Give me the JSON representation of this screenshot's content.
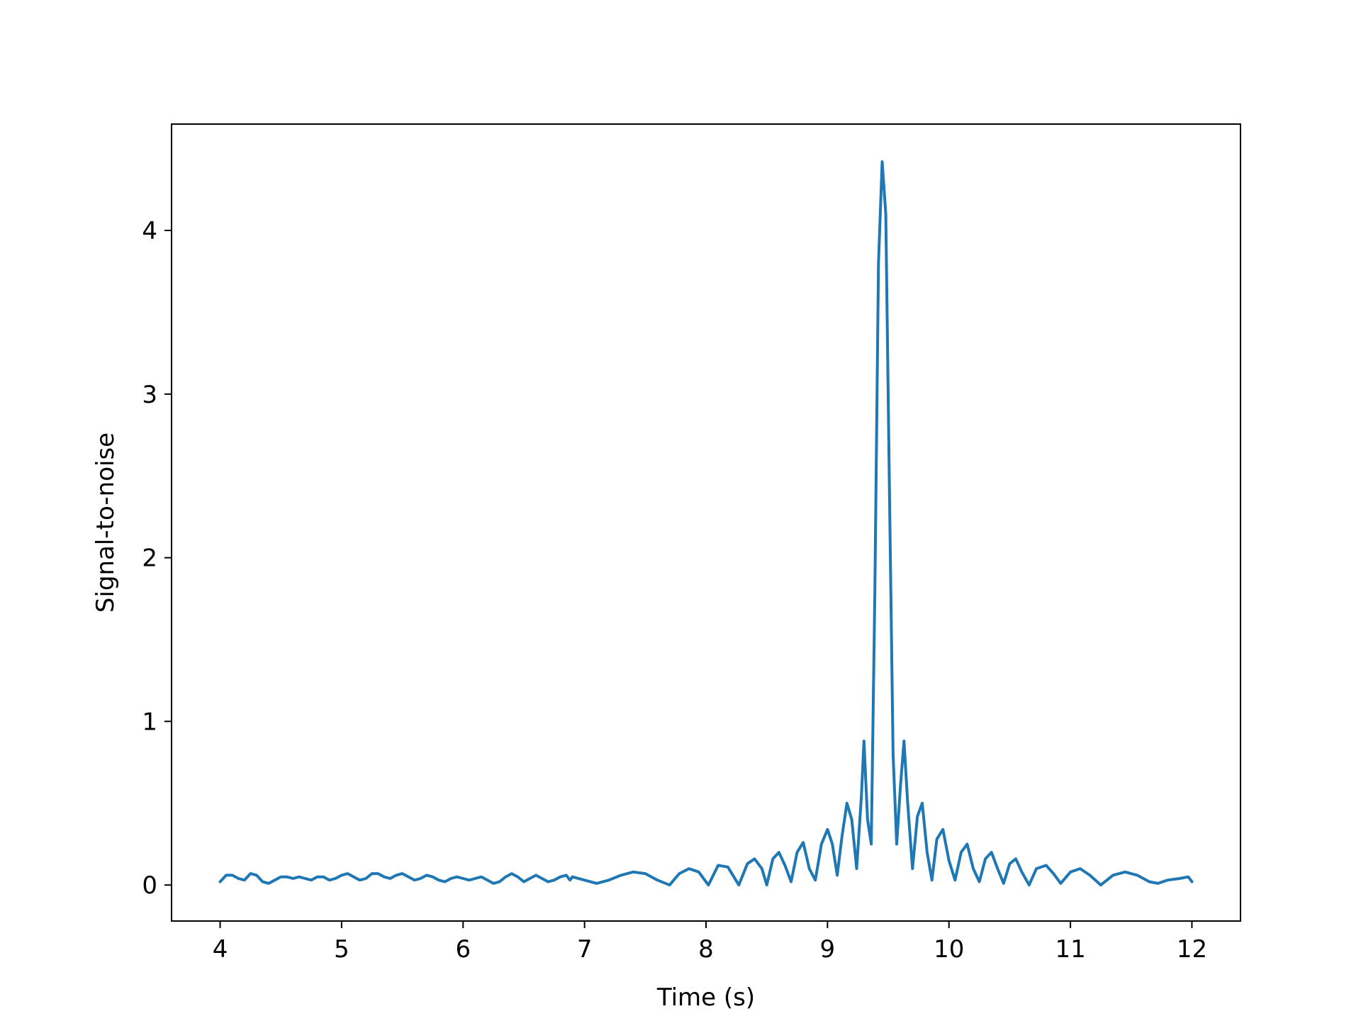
{
  "chart_data": {
    "type": "line",
    "title": "",
    "xlabel": "Time (s)",
    "ylabel": "Signal-to-noise",
    "xlim": [
      3.6,
      12.4
    ],
    "ylim": [
      -0.22,
      4.65
    ],
    "grid": false,
    "legend": "none",
    "x_ticks": [
      4,
      5,
      6,
      7,
      8,
      9,
      10,
      11,
      12
    ],
    "x_tick_labels": [
      "4",
      "5",
      "6",
      "7",
      "8",
      "9",
      "10",
      "11",
      "12"
    ],
    "y_ticks": [
      0,
      1,
      2,
      3,
      4
    ],
    "y_tick_labels": [
      "0",
      "1",
      "2",
      "3",
      "4"
    ],
    "series": [
      {
        "color": "#1f77b4",
        "x": [
          4.0,
          4.05,
          4.1,
          4.15,
          4.2,
          4.25,
          4.3,
          4.35,
          4.4,
          4.45,
          4.5,
          4.55,
          4.6,
          4.65,
          4.7,
          4.75,
          4.8,
          4.85,
          4.9,
          4.95,
          5.0,
          5.05,
          5.1,
          5.15,
          5.2,
          5.25,
          5.3,
          5.35,
          5.4,
          5.45,
          5.5,
          5.55,
          5.6,
          5.65,
          5.7,
          5.75,
          5.8,
          5.85,
          5.9,
          5.95,
          6.0,
          6.05,
          6.1,
          6.15,
          6.2,
          6.25,
          6.3,
          6.35,
          6.4,
          6.45,
          6.5,
          6.55,
          6.6,
          6.65,
          6.7,
          6.75,
          6.8,
          6.85,
          6.88,
          6.9,
          7.0,
          7.1,
          7.2,
          7.3,
          7.4,
          7.5,
          7.6,
          7.7,
          7.78,
          7.86,
          7.94,
          8.02,
          8.1,
          8.18,
          8.27,
          8.34,
          8.4,
          8.46,
          8.5,
          8.55,
          8.6,
          8.65,
          8.7,
          8.75,
          8.8,
          8.85,
          8.9,
          8.95,
          9.0,
          9.04,
          9.08,
          9.12,
          9.16,
          9.2,
          9.24,
          9.28,
          9.3,
          9.33,
          9.36,
          9.39,
          9.42,
          9.45,
          9.48,
          9.51,
          9.54,
          9.57,
          9.6,
          9.63,
          9.66,
          9.7,
          9.74,
          9.78,
          9.82,
          9.86,
          9.9,
          9.95,
          10.0,
          10.05,
          10.1,
          10.15,
          10.2,
          10.25,
          10.3,
          10.35,
          10.4,
          10.45,
          10.5,
          10.55,
          10.6,
          10.66,
          10.72,
          10.8,
          10.86,
          10.92,
          11.0,
          11.08,
          11.16,
          11.25,
          11.35,
          11.45,
          11.55,
          11.65,
          11.72,
          11.8,
          11.9,
          11.97,
          12.0
        ],
        "y": [
          0.02,
          0.06,
          0.06,
          0.04,
          0.03,
          0.07,
          0.06,
          0.02,
          0.01,
          0.03,
          0.05,
          0.05,
          0.04,
          0.05,
          0.04,
          0.03,
          0.05,
          0.05,
          0.03,
          0.04,
          0.06,
          0.07,
          0.05,
          0.03,
          0.04,
          0.07,
          0.07,
          0.05,
          0.04,
          0.06,
          0.07,
          0.05,
          0.03,
          0.04,
          0.06,
          0.05,
          0.03,
          0.02,
          0.04,
          0.05,
          0.04,
          0.03,
          0.04,
          0.05,
          0.03,
          0.01,
          0.02,
          0.05,
          0.07,
          0.05,
          0.02,
          0.04,
          0.06,
          0.04,
          0.02,
          0.03,
          0.05,
          0.06,
          0.03,
          0.05,
          0.03,
          0.01,
          0.03,
          0.06,
          0.08,
          0.07,
          0.03,
          0.0,
          0.07,
          0.1,
          0.08,
          0.0,
          0.12,
          0.11,
          0.0,
          0.13,
          0.16,
          0.1,
          0.0,
          0.16,
          0.2,
          0.12,
          0.02,
          0.2,
          0.26,
          0.1,
          0.03,
          0.25,
          0.34,
          0.25,
          0.06,
          0.3,
          0.5,
          0.4,
          0.1,
          0.55,
          0.88,
          0.4,
          0.25,
          1.8,
          3.8,
          4.42,
          4.1,
          2.4,
          0.8,
          0.25,
          0.6,
          0.88,
          0.5,
          0.1,
          0.42,
          0.5,
          0.2,
          0.03,
          0.28,
          0.34,
          0.15,
          0.03,
          0.2,
          0.25,
          0.1,
          0.02,
          0.16,
          0.2,
          0.1,
          0.01,
          0.13,
          0.16,
          0.08,
          0.0,
          0.1,
          0.12,
          0.07,
          0.01,
          0.08,
          0.1,
          0.06,
          0.0,
          0.06,
          0.08,
          0.06,
          0.02,
          0.01,
          0.03,
          0.04,
          0.05,
          0.02
        ]
      }
    ]
  }
}
